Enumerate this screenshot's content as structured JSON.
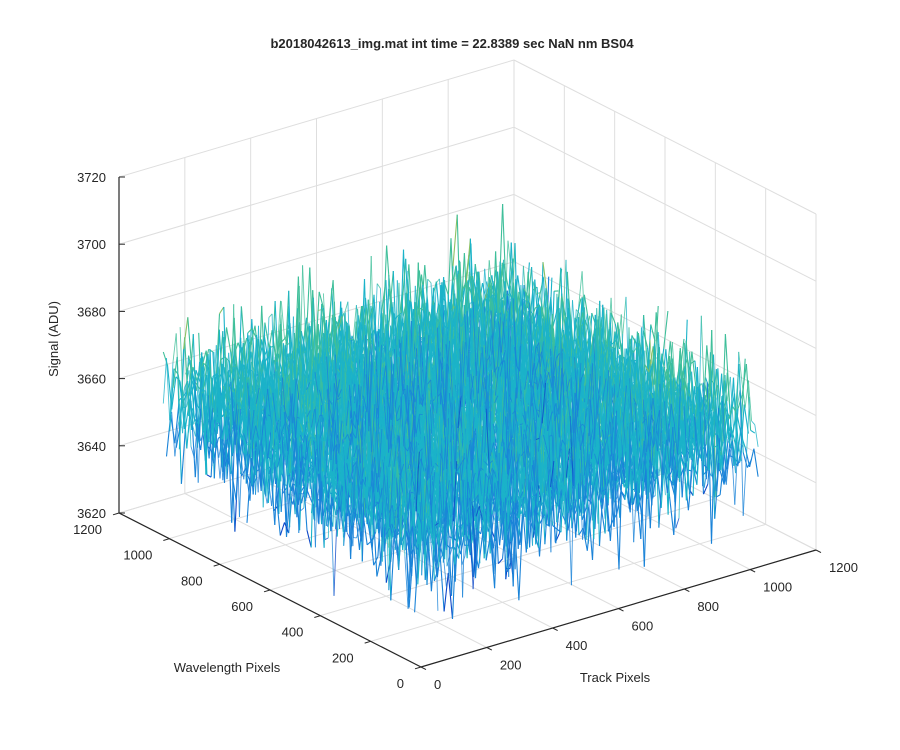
{
  "chart_data": {
    "type": "surface",
    "title": "b2018042613_img.mat int time = 22.8389 sec  NaN nm BS04",
    "xlabel": "Track Pixels",
    "ylabel": "Wavelength Pixels",
    "zlabel": "Signal (ADU)",
    "xlim": [
      0,
      1200
    ],
    "ylim": [
      0,
      1200
    ],
    "zlim": [
      3620,
      3720
    ],
    "x_ticks": [
      0,
      200,
      400,
      600,
      800,
      1000,
      1200
    ],
    "y_ticks": [
      0,
      200,
      400,
      600,
      800,
      1000,
      1200
    ],
    "z_ticks": [
      3620,
      3640,
      3660,
      3680,
      3700,
      3720
    ],
    "x_tick_labels": [
      "0",
      "200",
      "400",
      "600",
      "800",
      "1000",
      "1200"
    ],
    "y_tick_labels": [
      "0",
      "200",
      "400",
      "600",
      "800",
      "1000",
      "1200"
    ],
    "z_tick_labels": [
      "3620",
      "3640",
      "3660",
      "3680",
      "3700",
      "3720"
    ],
    "data_extent": {
      "x": [
        0,
        1024
      ],
      "y": [
        0,
        1024
      ]
    },
    "signal_stats": {
      "mean": 3660,
      "min": 3628,
      "max": 3708
    },
    "grid": true,
    "colormap": [
      "#0d47c8",
      "#1a83d8",
      "#1bb3c9",
      "#3fbf9a",
      "#8cc163",
      "#e6b93a"
    ]
  }
}
